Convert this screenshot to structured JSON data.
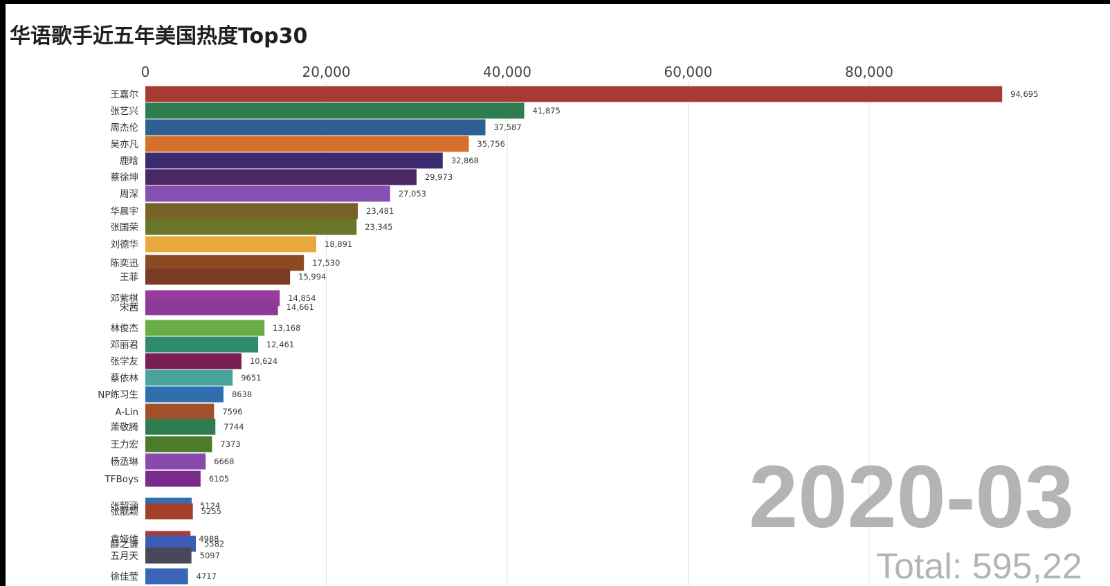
{
  "chart_data": {
    "type": "bar",
    "orientation": "horizontal",
    "title": "华语歌手近五年美国热度Top30",
    "xlabel": "",
    "ylabel": "",
    "xlim": [
      0,
      106000
    ],
    "xticks": [
      0,
      20000,
      40000,
      60000,
      80000
    ],
    "xtick_labels": [
      "0",
      "20,000",
      "40,000",
      "60,000",
      "80,000"
    ],
    "xaxis_position": "top",
    "grid": true,
    "legend": "none",
    "categories": [
      "王嘉尔",
      "张艺兴",
      "周杰伦",
      "吴亦凡",
      "鹿晗",
      "蔡徐坤",
      "周深",
      "华晨宇",
      "张国荣",
      "刘德华",
      "陈奕迅",
      "王菲",
      "邓紫棋",
      "宋茜",
      "林俊杰",
      "邓丽君",
      "张学友",
      "蔡依林",
      "NP练习生",
      "A-Lin",
      "萧敬腾",
      "王力宏",
      "杨丞琳",
      "TFBoys",
      "张韶涵",
      "张靓颖",
      "袁娅维",
      "薛之谦",
      "五月天",
      "徐佳莹"
    ],
    "values": [
      94695,
      41875,
      37587,
      35756,
      32868,
      29973,
      27053,
      23481,
      23345,
      18891,
      17530,
      15994,
      14854,
      14661,
      13168,
      12461,
      10624,
      9651,
      8638,
      7596,
      7744,
      7373,
      6668,
      6105,
      5124,
      5255,
      4988,
      5582,
      5097,
      4717
    ],
    "value_labels": [
      "94,695",
      "41,875",
      "37,587",
      "35,756",
      "32,868",
      "29,973",
      "27,053",
      "23,481",
      "23,345",
      "18,891",
      "17,530",
      "15,994",
      "14,854",
      "14,661",
      "13,168",
      "12,461",
      "10,624",
      "9651",
      "8638",
      "7596",
      "7744",
      "7373",
      "6668",
      "6105",
      "5124",
      "5255",
      "4988",
      "5582",
      "5097",
      "4717"
    ],
    "colors": [
      "#a83a34",
      "#2f7d4f",
      "#2d5f93",
      "#d7702a",
      "#3b2a70",
      "#4b2864",
      "#8450b3",
      "#776329",
      "#6a752a",
      "#e8a93c",
      "#8b4a22",
      "#7b3b24",
      "#9b3b9e",
      "#8d3a98",
      "#6aac45",
      "#2f8b6c",
      "#7a1f55",
      "#4aa49e",
      "#2f6fae",
      "#a1502a",
      "#2f7d4f",
      "#4b7c2a",
      "#8a4aab",
      "#7a2a8c",
      "#2f6fae",
      "#a54028",
      "#a43d3d",
      "#3b5bb5",
      "#48485a",
      "#3b66b8"
    ],
    "annotations": {
      "date": "2020-03",
      "total": "Total: 595,22"
    }
  }
}
